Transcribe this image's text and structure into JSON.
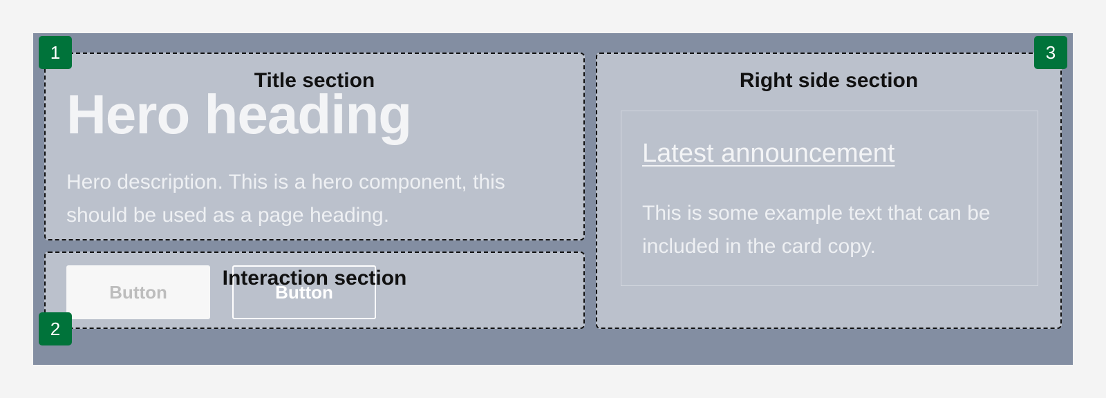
{
  "sections": {
    "title_section": {
      "label": "Title section",
      "marker": "1",
      "hero_heading": "Hero heading",
      "hero_description": "Hero description. This is a hero component, this should be used as a page heading."
    },
    "interaction_section": {
      "label": "Interaction section",
      "marker": "2",
      "primary_button": "Button",
      "secondary_button": "Button"
    },
    "right_side_section": {
      "label": "Right side section",
      "marker": "3",
      "card": {
        "title": "Latest announcement",
        "copy": "This is some example text that can be included in the card copy."
      }
    }
  },
  "colors": {
    "page_background": "#f4f4f4",
    "hero_background": "#838ea2",
    "marker_background": "#00733a",
    "region_border": "#111111"
  }
}
